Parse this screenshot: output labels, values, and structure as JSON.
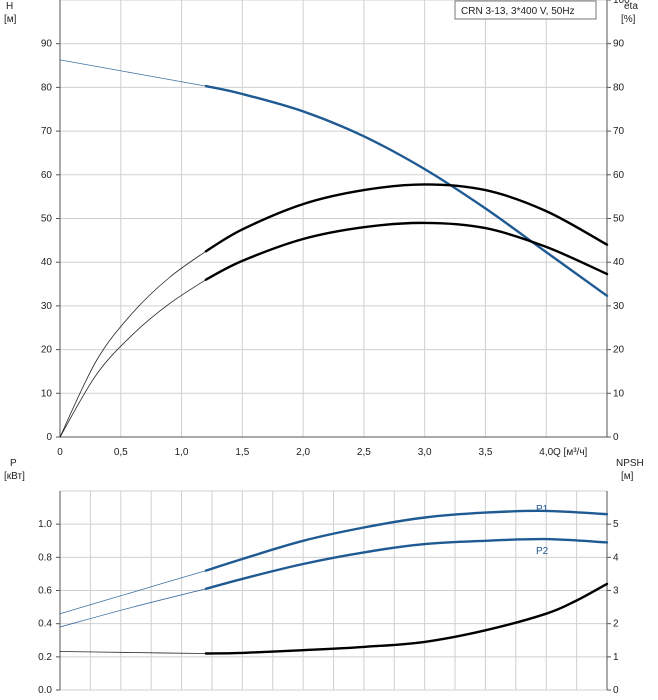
{
  "colors": {
    "head": "#1f5a93",
    "power": "#1f5a93",
    "eta": "#000000",
    "npsh": "#000000",
    "grid": "#d0d0d0",
    "axis": "#555555"
  },
  "legend": "CRN 3-13, 3*400 V, 50Hz",
  "chart_data": [
    {
      "type": "line",
      "panel": "top",
      "xlabel": "Q [м³/ч]",
      "ylabel_left": [
        "H",
        "[м]"
      ],
      "ylabel_right": [
        "eta",
        "[%]"
      ],
      "xlim": [
        0,
        4.5
      ],
      "ylim_left": [
        0,
        100
      ],
      "ylim_right": [
        0,
        100
      ],
      "x_ticks": [
        0,
        0.5,
        1.0,
        1.5,
        2.0,
        2.5,
        3.0,
        3.5,
        4.0
      ],
      "x_tick_labels": [
        "0",
        "0,5",
        "1,0",
        "1,5",
        "2,0",
        "2,5",
        "3,0",
        "3,5",
        "4,0"
      ],
      "y_left_ticks": [
        0,
        10,
        20,
        30,
        40,
        50,
        60,
        70,
        80,
        90
      ],
      "y_right_ticks": [
        0,
        10,
        20,
        30,
        40,
        50,
        60,
        70,
        80,
        90,
        100
      ],
      "grid": true,
      "legend_position": "top-right",
      "series": [
        {
          "key": "head",
          "axis": "left",
          "color": "#1f5a93",
          "thin_until": 1.2,
          "x": [
            0,
            0.6,
            1.2,
            1.5,
            2.0,
            2.5,
            3.0,
            3.5,
            4.0,
            4.5
          ],
          "y": [
            86.3,
            83.3,
            80.3,
            78.5,
            74.5,
            68.8,
            61.3,
            52.3,
            42.3,
            32.3
          ]
        },
        {
          "key": "eta",
          "axis": "right",
          "color": "#000000",
          "thin_until": 1.2,
          "x": [
            0,
            0.3,
            0.6,
            0.9,
            1.2,
            1.5,
            2.0,
            2.5,
            3.0,
            3.5,
            4.0,
            4.5
          ],
          "y": [
            0,
            17.5,
            28.5,
            36.5,
            42.5,
            47.5,
            53.3,
            56.5,
            57.8,
            56.5,
            51.7,
            44
          ]
        },
        {
          "key": "eta2",
          "axis": "right",
          "color": "#000000",
          "thin_until": 1.2,
          "x": [
            0,
            0.3,
            0.6,
            0.9,
            1.2,
            1.5,
            2.0,
            2.5,
            3.0,
            3.5,
            4.0,
            4.5
          ],
          "y": [
            0,
            14.3,
            23.5,
            30.5,
            36,
            40.3,
            45.3,
            48,
            49,
            47.8,
            43.5,
            37.3
          ]
        }
      ]
    },
    {
      "type": "line",
      "panel": "bottom",
      "ylabel_left": [
        "P",
        "[кВт]"
      ],
      "ylabel_right": [
        "NPSH",
        "[м]"
      ],
      "xlim": [
        0,
        4.5
      ],
      "ylim_left": [
        0,
        1.2
      ],
      "ylim_right": [
        0,
        6
      ],
      "y_left_ticks": [
        0.0,
        0.2,
        0.4,
        0.6,
        0.8,
        1.0
      ],
      "y_left_tick_labels": [
        "0.0",
        "0.2",
        "0.4",
        "0.6",
        "0.8",
        "1.0"
      ],
      "y_right_ticks": [
        0,
        1,
        2,
        3,
        4,
        5
      ],
      "grid": true,
      "series": [
        {
          "key": "p1",
          "name": "P1",
          "axis": "left",
          "color": "#1f5a93",
          "thin_until": 1.2,
          "x": [
            0,
            0.6,
            1.2,
            1.5,
            2.0,
            2.5,
            3.0,
            3.5,
            4.0,
            4.5
          ],
          "y": [
            0.46,
            0.59,
            0.72,
            0.79,
            0.9,
            0.98,
            1.04,
            1.07,
            1.08,
            1.06
          ]
        },
        {
          "key": "p2",
          "name": "P2",
          "axis": "left",
          "color": "#1f5a93",
          "thin_until": 1.2,
          "x": [
            0,
            0.6,
            1.2,
            1.5,
            2.0,
            2.5,
            3.0,
            3.5,
            4.0,
            4.5
          ],
          "y": [
            0.38,
            0.5,
            0.61,
            0.67,
            0.76,
            0.83,
            0.88,
            0.9,
            0.91,
            0.89
          ]
        },
        {
          "key": "npsh",
          "axis": "right",
          "color": "#000000",
          "thin_until": 1.2,
          "x": [
            0,
            0.6,
            1.2,
            1.5,
            2.0,
            2.5,
            3.0,
            3.5,
            4.0,
            4.25,
            4.5
          ],
          "y": [
            1.16,
            1.13,
            1.1,
            1.12,
            1.2,
            1.3,
            1.45,
            1.8,
            2.3,
            2.7,
            3.2
          ]
        }
      ]
    }
  ]
}
